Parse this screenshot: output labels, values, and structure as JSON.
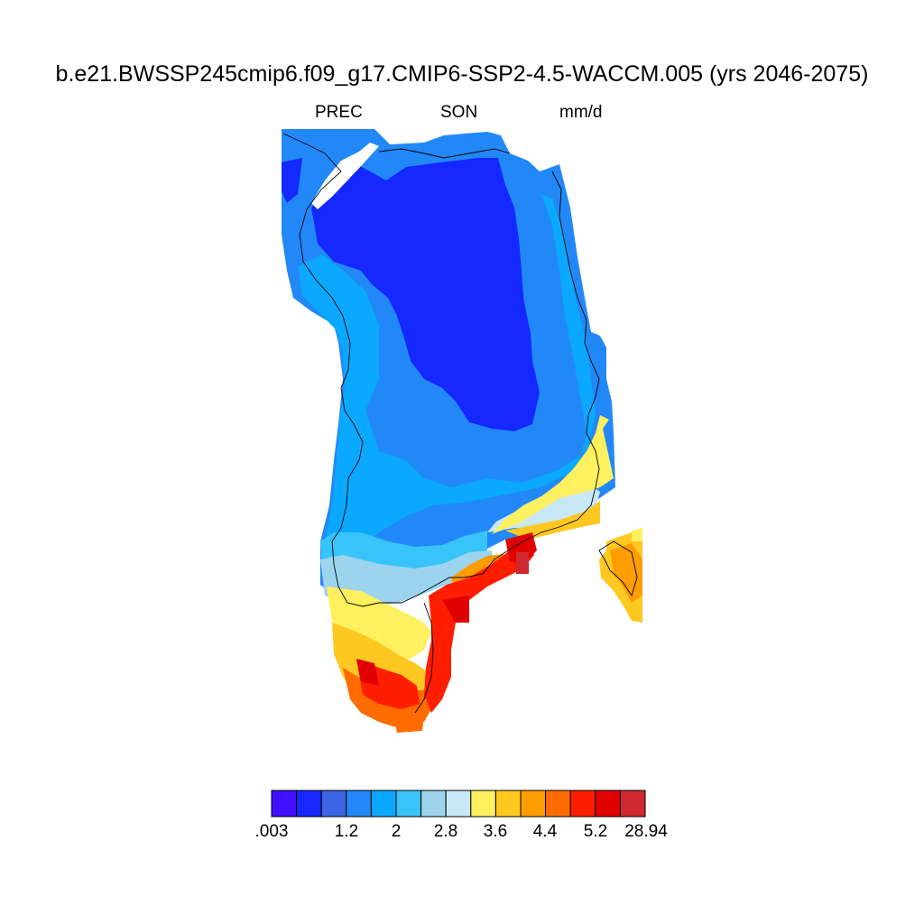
{
  "title": "b.e21.BWSSP245cmip6.f09_g17.CMIP6-SSP2-4.5-WACCM.005 (yrs 2046-2075)",
  "variable": "PREC",
  "season": "SON",
  "units": "mm/d",
  "colorbar": {
    "colors": [
      "#4010ff",
      "#1428ff",
      "#3c64e4",
      "#2288f8",
      "#0aa8ff",
      "#38c4f8",
      "#9cd4ee",
      "#c8e8f8",
      "#fff060",
      "#ffc820",
      "#ff9c00",
      "#ff6c00",
      "#ff1e00",
      "#e00000",
      "#d02830"
    ],
    "labels": [
      ".003",
      "1.2",
      "2",
      "2.8",
      "3.6",
      "4.4",
      "5.2",
      "28.94"
    ]
  },
  "chart_data": {
    "type": "heatmap",
    "region": "Greenland",
    "variable": "PREC",
    "season": "SON",
    "units": "mm/d",
    "period": "2046-2075",
    "bin_edges_labeled": [
      ".003",
      "1.2",
      "2",
      "2.8",
      "3.6",
      "4.4",
      "5.2",
      "28.94"
    ],
    "pattern": {
      "interior": "0.6-0.8",
      "north_and_margins": "0.8-1.6",
      "west_coast": "1.6-2.4",
      "southwest": "2.4-3.2",
      "southeast_coast": "4.4-28.94",
      "southern_tip": "4.4-5.6"
    }
  }
}
